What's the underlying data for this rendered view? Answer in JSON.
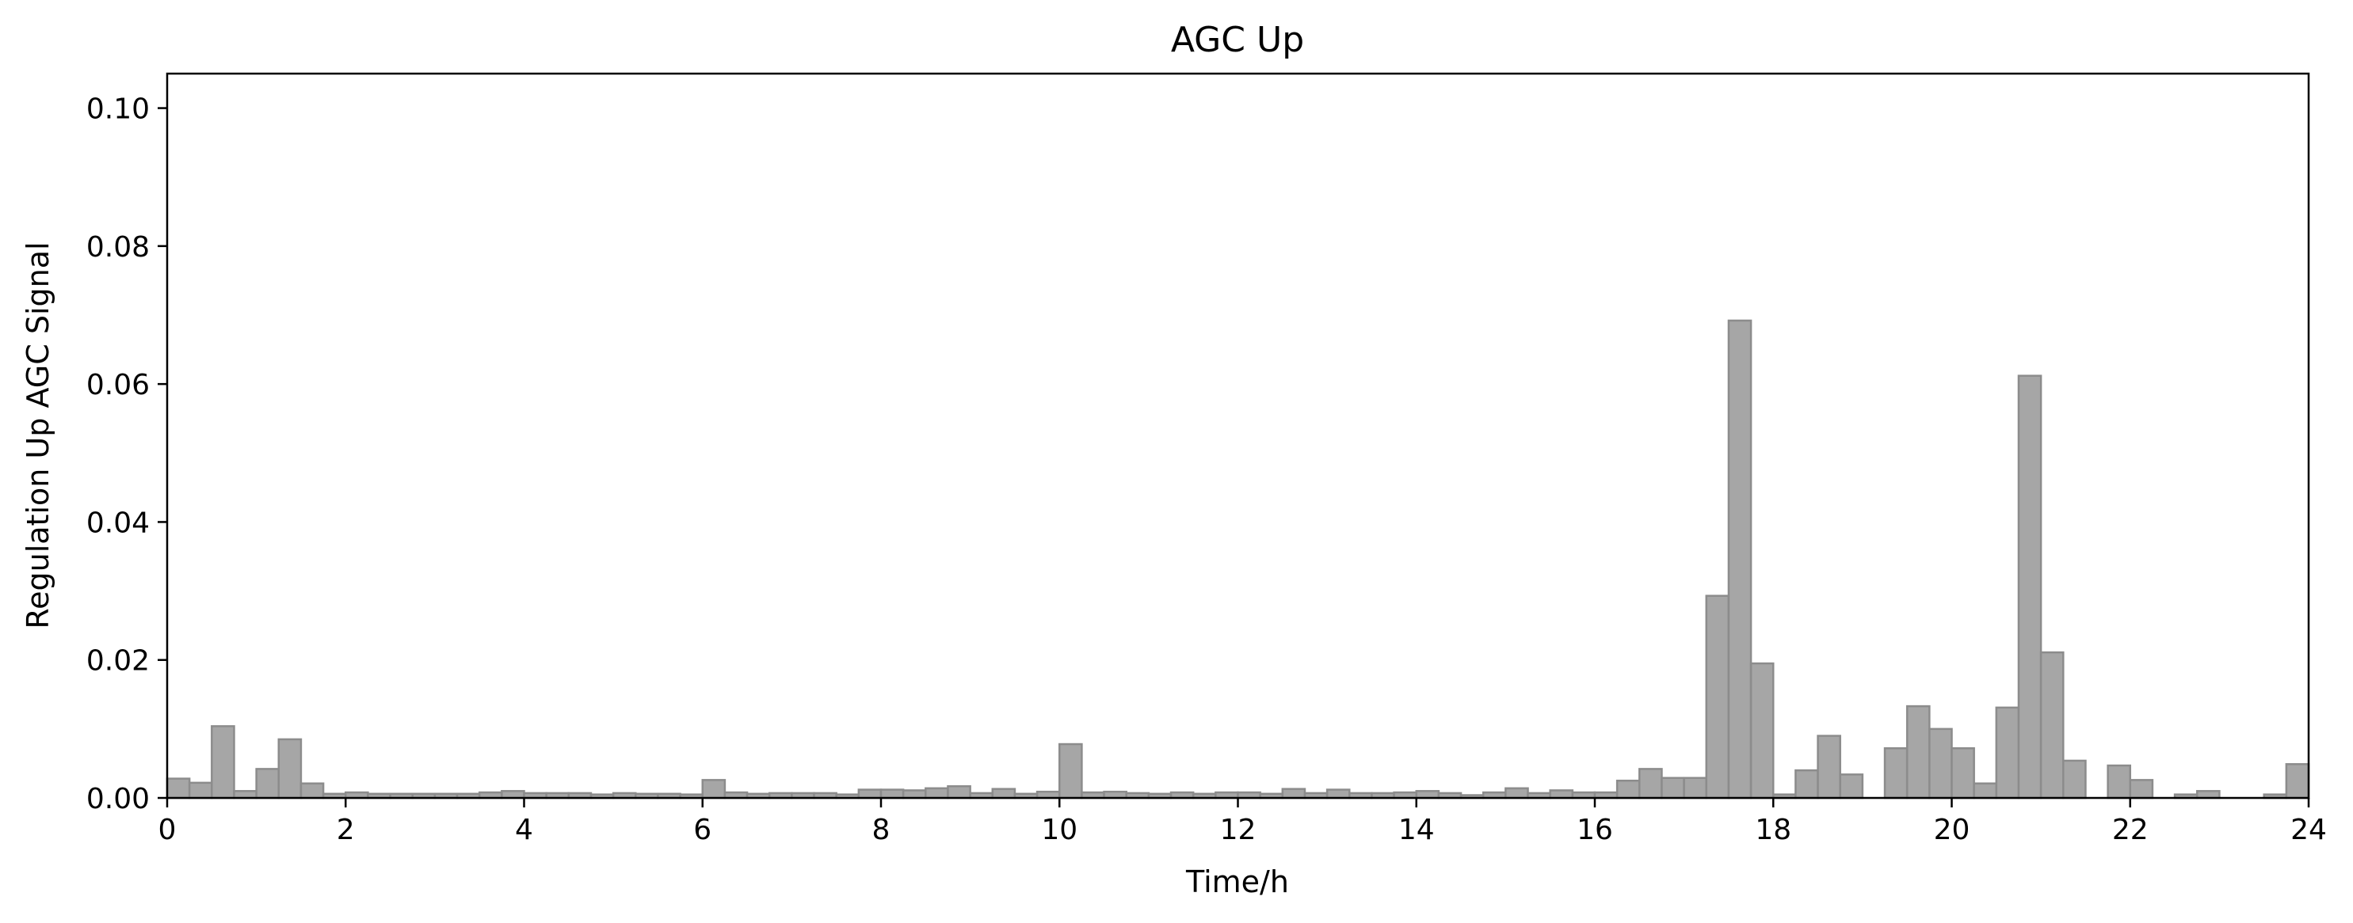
{
  "chart_data": {
    "type": "bar",
    "title": "AGC Up",
    "xlabel": "Time/h",
    "ylabel": "Regulation Up AGC Signal",
    "xlim": [
      0,
      24
    ],
    "ylim": [
      0,
      0.105
    ],
    "xticks": [
      0,
      2,
      4,
      6,
      8,
      10,
      12,
      14,
      16,
      18,
      20,
      22,
      24
    ],
    "yticks": [
      0.0,
      0.02,
      0.04,
      0.06,
      0.08,
      0.1
    ],
    "xtick_labels": [
      "0",
      "2",
      "4",
      "6",
      "8",
      "10",
      "12",
      "14",
      "16",
      "18",
      "20",
      "22",
      "24"
    ],
    "ytick_labels": [
      "0.00",
      "0.02",
      "0.04",
      "0.06",
      "0.08",
      "0.10"
    ],
    "grid": false,
    "bin_width_h": 0.25,
    "bar_fill": "#a6a6a6",
    "bar_edge": "#8c8c8c",
    "bins": [
      {
        "x": 0.0,
        "value": 0.0028
      },
      {
        "x": 0.25,
        "value": 0.0022
      },
      {
        "x": 0.5,
        "value": 0.0104
      },
      {
        "x": 0.75,
        "value": 0.001
      },
      {
        "x": 1.0,
        "value": 0.0042
      },
      {
        "x": 1.25,
        "value": 0.0085
      },
      {
        "x": 1.5,
        "value": 0.0021
      },
      {
        "x": 1.75,
        "value": 0.0006
      },
      {
        "x": 2.0,
        "value": 0.0008
      },
      {
        "x": 2.25,
        "value": 0.0006
      },
      {
        "x": 2.5,
        "value": 0.0006
      },
      {
        "x": 2.75,
        "value": 0.0006
      },
      {
        "x": 3.0,
        "value": 0.0006
      },
      {
        "x": 3.25,
        "value": 0.0006
      },
      {
        "x": 3.5,
        "value": 0.0008
      },
      {
        "x": 3.75,
        "value": 0.001
      },
      {
        "x": 4.0,
        "value": 0.0007
      },
      {
        "x": 4.25,
        "value": 0.0007
      },
      {
        "x": 4.5,
        "value": 0.0007
      },
      {
        "x": 4.75,
        "value": 0.0005
      },
      {
        "x": 5.0,
        "value": 0.0007
      },
      {
        "x": 5.25,
        "value": 0.0006
      },
      {
        "x": 5.5,
        "value": 0.0006
      },
      {
        "x": 5.75,
        "value": 0.0005
      },
      {
        "x": 6.0,
        "value": 0.0026
      },
      {
        "x": 6.25,
        "value": 0.0008
      },
      {
        "x": 6.5,
        "value": 0.0006
      },
      {
        "x": 6.75,
        "value": 0.0007
      },
      {
        "x": 7.0,
        "value": 0.0007
      },
      {
        "x": 7.25,
        "value": 0.0007
      },
      {
        "x": 7.5,
        "value": 0.0005
      },
      {
        "x": 7.75,
        "value": 0.0012
      },
      {
        "x": 8.0,
        "value": 0.0012
      },
      {
        "x": 8.25,
        "value": 0.0011
      },
      {
        "x": 8.5,
        "value": 0.0014
      },
      {
        "x": 8.75,
        "value": 0.0017
      },
      {
        "x": 9.0,
        "value": 0.0007
      },
      {
        "x": 9.25,
        "value": 0.0013
      },
      {
        "x": 9.5,
        "value": 0.0006
      },
      {
        "x": 9.75,
        "value": 0.0009
      },
      {
        "x": 10.0,
        "value": 0.0078
      },
      {
        "x": 10.25,
        "value": 0.0008
      },
      {
        "x": 10.5,
        "value": 0.0009
      },
      {
        "x": 10.75,
        "value": 0.0007
      },
      {
        "x": 11.0,
        "value": 0.0006
      },
      {
        "x": 11.25,
        "value": 0.0008
      },
      {
        "x": 11.5,
        "value": 0.0006
      },
      {
        "x": 11.75,
        "value": 0.0008
      },
      {
        "x": 12.0,
        "value": 0.0008
      },
      {
        "x": 12.25,
        "value": 0.0006
      },
      {
        "x": 12.5,
        "value": 0.0013
      },
      {
        "x": 12.75,
        "value": 0.0007
      },
      {
        "x": 13.0,
        "value": 0.0012
      },
      {
        "x": 13.25,
        "value": 0.0007
      },
      {
        "x": 13.5,
        "value": 0.0007
      },
      {
        "x": 13.75,
        "value": 0.0008
      },
      {
        "x": 14.0,
        "value": 0.001
      },
      {
        "x": 14.25,
        "value": 0.0007
      },
      {
        "x": 14.5,
        "value": 0.0004
      },
      {
        "x": 14.75,
        "value": 0.0008
      },
      {
        "x": 15.0,
        "value": 0.0014
      },
      {
        "x": 15.25,
        "value": 0.0007
      },
      {
        "x": 15.5,
        "value": 0.0011
      },
      {
        "x": 15.75,
        "value": 0.0008
      },
      {
        "x": 16.0,
        "value": 0.0008
      },
      {
        "x": 16.25,
        "value": 0.0025
      },
      {
        "x": 16.5,
        "value": 0.0042
      },
      {
        "x": 16.75,
        "value": 0.0029
      },
      {
        "x": 17.0,
        "value": 0.0029
      },
      {
        "x": 17.25,
        "value": 0.0293
      },
      {
        "x": 17.5,
        "value": 0.0692
      },
      {
        "x": 17.75,
        "value": 0.0195
      },
      {
        "x": 18.0,
        "value": 0.0005
      },
      {
        "x": 18.25,
        "value": 0.004
      },
      {
        "x": 18.5,
        "value": 0.009
      },
      {
        "x": 18.75,
        "value": 0.0034
      },
      {
        "x": 19.0,
        "value": 0.0
      },
      {
        "x": 19.25,
        "value": 0.0072
      },
      {
        "x": 19.5,
        "value": 0.0133
      },
      {
        "x": 19.75,
        "value": 0.01
      },
      {
        "x": 20.0,
        "value": 0.0072
      },
      {
        "x": 20.25,
        "value": 0.0021
      },
      {
        "x": 20.5,
        "value": 0.0131
      },
      {
        "x": 20.75,
        "value": 0.0612
      },
      {
        "x": 21.0,
        "value": 0.0211
      },
      {
        "x": 21.25,
        "value": 0.0054
      },
      {
        "x": 21.5,
        "value": 0.0
      },
      {
        "x": 21.75,
        "value": 0.0047
      },
      {
        "x": 22.0,
        "value": 0.0026
      },
      {
        "x": 22.25,
        "value": 0.0
      },
      {
        "x": 22.5,
        "value": 0.0005
      },
      {
        "x": 22.75,
        "value": 0.001
      },
      {
        "x": 23.0,
        "value": 0.0
      },
      {
        "x": 23.25,
        "value": 0.0
      },
      {
        "x": 23.5,
        "value": 0.0005
      },
      {
        "x": 23.75,
        "value": 0.0049
      }
    ]
  }
}
